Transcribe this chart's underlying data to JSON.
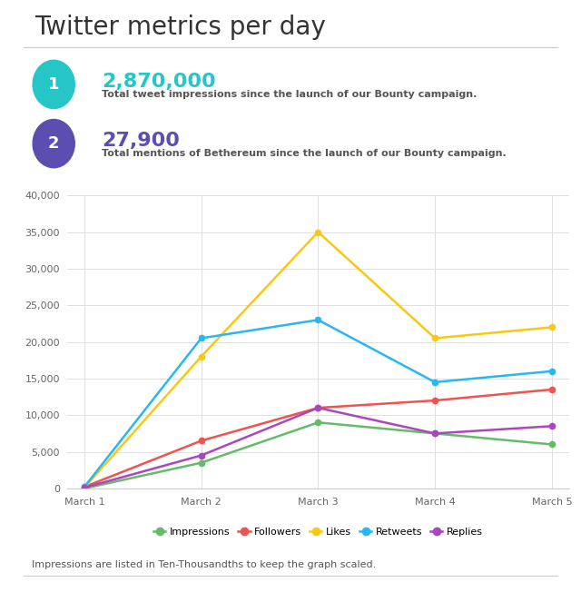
{
  "title": "Twitter metrics per day",
  "stat1_number": "2,870,000",
  "stat1_color": "#26C6C6",
  "stat1_desc": "Total tweet impressions since the launch of our Bounty campaign.",
  "stat2_number": "27,900",
  "stat2_color": "#5C4DB1",
  "stat2_desc": "Total mentions of Bethereum since the launch of our Bounty campaign.",
  "x_labels": [
    "March 1",
    "March 2",
    "March 3",
    "March 4",
    "March 5"
  ],
  "x_values": [
    0,
    1,
    2,
    3,
    4
  ],
  "series": [
    {
      "name": "Impressions",
      "values": [
        0,
        3500,
        9000,
        7500,
        6000
      ],
      "color": "#66BB6A"
    },
    {
      "name": "Followers",
      "values": [
        200,
        6500,
        11000,
        12000,
        13500
      ],
      "color": "#EF5350"
    },
    {
      "name": "Likes",
      "values": [
        100,
        18000,
        35000,
        20500,
        22000
      ],
      "color": "#F9C813"
    },
    {
      "name": "Retweets",
      "values": [
        200,
        20500,
        23000,
        14500,
        16000
      ],
      "color": "#29B6F6"
    },
    {
      "name": "Replies",
      "values": [
        100,
        4500,
        11000,
        7500,
        8500
      ],
      "color": "#AB47BC"
    }
  ],
  "ylim": [
    0,
    40000
  ],
  "yticks": [
    0,
    5000,
    10000,
    15000,
    20000,
    25000,
    30000,
    35000,
    40000
  ],
  "footer_note": "Impressions are listed in Ten-Thousandths to keep the graph scaled.",
  "background_color": "#FFFFFF",
  "grid_color": "#E0E0E0",
  "title_fontsize": 20,
  "stat_number_fontsize": 16,
  "stat_desc_fontsize": 8,
  "tick_fontsize": 8,
  "legend_fontsize": 8,
  "footer_fontsize": 8
}
